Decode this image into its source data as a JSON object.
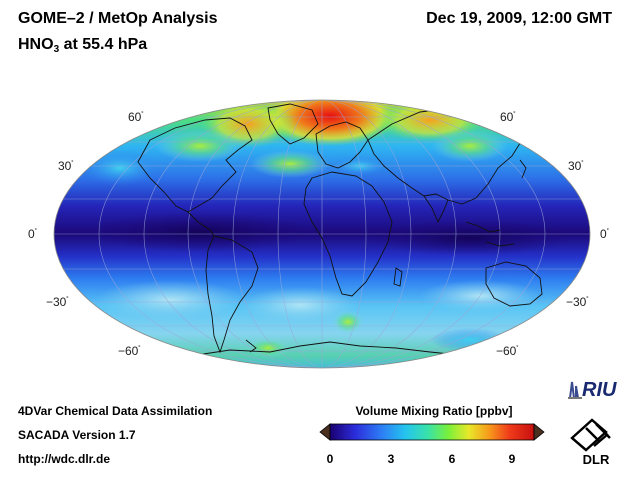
{
  "header": {
    "title": "GOME–2 / MetOp Analysis",
    "datetime": "Dec 19, 2009, 12:00 GMT",
    "species_prefix": "HNO",
    "species_subscript": "3",
    "species_suffix": " at 55.4 hPa"
  },
  "map": {
    "projection": "Mollweide",
    "lat_labels_left": [
      "60",
      "30",
      "0",
      "−30",
      "−60"
    ],
    "lat_labels_right": [
      "60",
      "30",
      "0",
      "−30",
      "−60"
    ],
    "degree_symbol": "˚"
  },
  "footer": {
    "line1": "4DVar Chemical Data Assimilation",
    "line2": "SACADA Version 1.7",
    "line3": "http://wdc.dlr.de"
  },
  "colorbar": {
    "title": "Volume Mixing Ratio [ppbv]",
    "ticks": [
      "0",
      "3",
      "6",
      "9"
    ],
    "range": [
      0,
      10
    ],
    "colors": [
      "#1a0070",
      "#2b2bd8",
      "#2d7cf5",
      "#25c4ee",
      "#39e2a8",
      "#7af03c",
      "#e8e82a",
      "#f79a1c",
      "#ef3a1a",
      "#c81010"
    ]
  },
  "logos": {
    "riu_text": "RIU",
    "dlr_text": "DLR"
  }
}
